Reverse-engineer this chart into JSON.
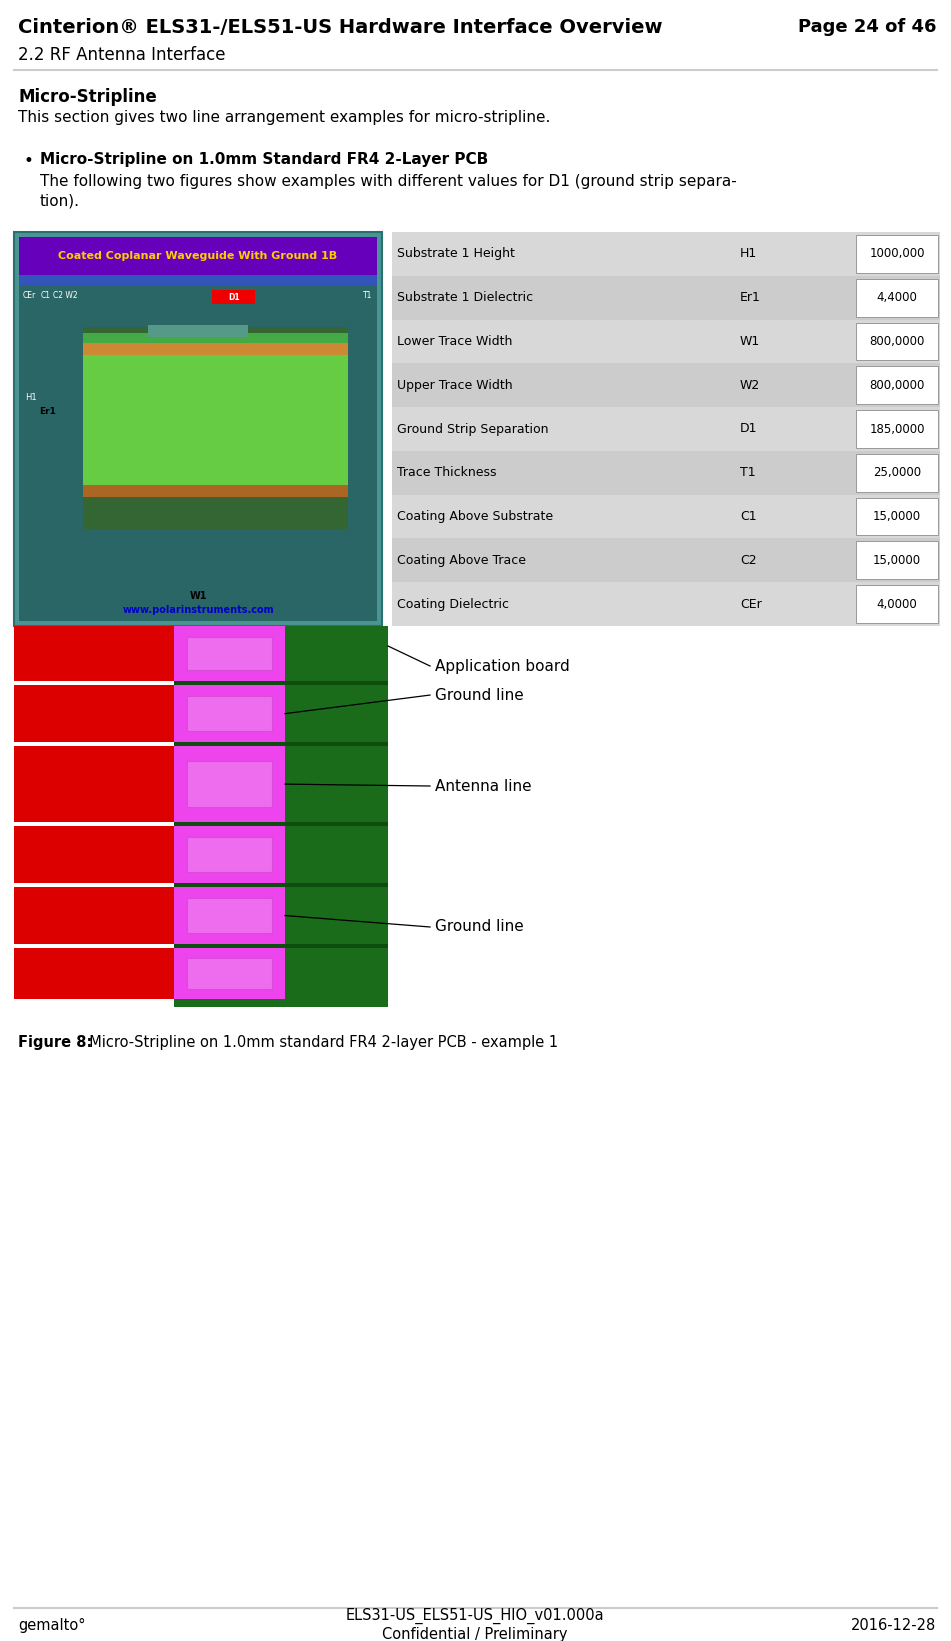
{
  "header_title": "Cinterion® ELS31-/ELS51-US Hardware Interface Overview",
  "header_page": "Page 24 of 46",
  "header_sub": "2.2 RF Antenna Interface",
  "header_line_color": "#cccccc",
  "footer_left": "gemalto°",
  "footer_center1": "ELS31-US_ELS51-US_HIO_v01.000a",
  "footer_center2": "Confidential / Preliminary",
  "footer_right": "2016-12-28",
  "footer_line_color": "#cccccc",
  "section_title": "Micro-Stripline",
  "section_body": "This section gives two line arrangement examples for micro-stripline.",
  "bullet_title": "Micro-Stripline on 1.0mm Standard FR4 2-Layer PCB",
  "bullet_body1": "The following two figures show examples with different values for D1 (ground strip separa-",
  "bullet_body2": "tion).",
  "figure_caption_bold": "Figure 8:",
  "figure_caption_rest": "  Micro-Stripline on 1.0mm standard FR4 2-layer PCB - example 1",
  "bg_color": "#ffffff",
  "table_bg": "#d4d4d4",
  "table_rows": [
    {
      "label": "Substrate 1 Height",
      "sym": "H1",
      "val": "1000,000"
    },
    {
      "label": "Substrate 1 Dielectric",
      "sym": "Er1",
      "val": "4,4000"
    },
    {
      "label": "Lower Trace Width",
      "sym": "W1",
      "val": "800,0000"
    },
    {
      "label": "Upper Trace Width",
      "sym": "W2",
      "val": "800,0000"
    },
    {
      "label": "Ground Strip Separation",
      "sym": "D1",
      "val": "185,0000"
    },
    {
      "label": "Trace Thickness",
      "sym": "T1",
      "val": "25,0000"
    },
    {
      "label": "Coating Above Substrate",
      "sym": "C1",
      "val": "15,0000"
    },
    {
      "label": "Coating Above Trace",
      "sym": "C2",
      "val": "15,0000"
    },
    {
      "label": "Coating Dielectric",
      "sym": "CEr",
      "val": "4,0000"
    }
  ],
  "label_antenna": "Antenna line",
  "label_ground1": "Ground line",
  "label_ground2": "Ground line",
  "label_appboard": "Application board",
  "pcb_green": "#1a6b1a",
  "pcb_red": "#dd0000",
  "pcb_pink": "#ee44ee",
  "pcb_darkgreen": "#0d4d0d",
  "img_bg": "#4a9494",
  "img_title_bg": "#6600bb",
  "img_title_fg": "#ffcc00",
  "img_blue_bar": "#3355bb",
  "img_dark_bg": "#2a6666",
  "img_substrate_green": "#44aa44",
  "img_substrate_light": "#66cc44",
  "img_copper": "#cc8833",
  "img_copper_dark": "#aa6622",
  "img_coating": "#559988"
}
